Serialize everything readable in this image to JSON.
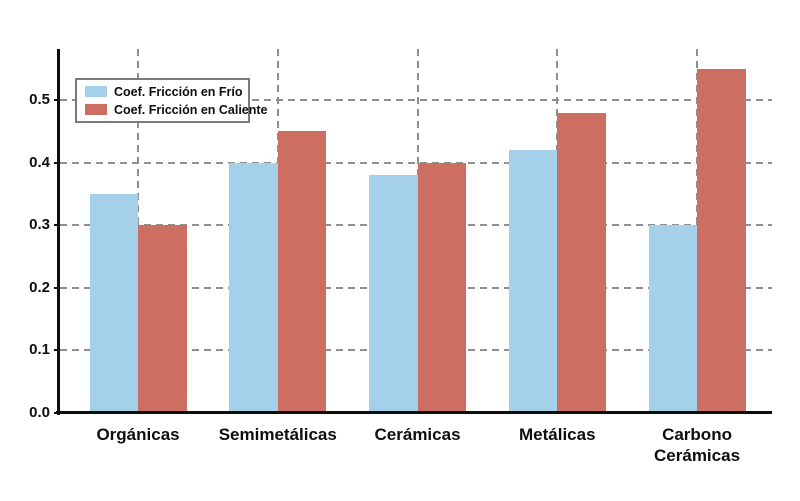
{
  "chart_data": {
    "type": "bar",
    "title": "",
    "categories": [
      "Orgánicas",
      "Semimetálicas",
      "Cerámicas",
      "Metálicas",
      "Carbono\nCerámicas"
    ],
    "series": [
      {
        "name": "Coef. Fricción en Frío",
        "color": "#a5d0ea",
        "values": [
          0.35,
          0.4,
          0.38,
          0.42,
          0.3
        ]
      },
      {
        "name": "Coef. Fricción en Caliente",
        "color": "#cd6e62",
        "values": [
          0.3,
          0.45,
          0.4,
          0.48,
          0.55
        ]
      }
    ],
    "xlabel": "",
    "ylabel": "",
    "yticks": [
      "0.0",
      "0.1",
      "0.2",
      "0.3",
      "0.4",
      "0.5"
    ],
    "ylim": [
      0,
      0.5815
    ],
    "grid": "dashed gray, horizontal at y ticks and vertical at category centers",
    "legend_position": "upper-left",
    "colors": {
      "grid": "#8f8f8f",
      "axis": "#0e0e0e",
      "legend_border": "#7a7a7a",
      "background": "#ffffff"
    }
  }
}
